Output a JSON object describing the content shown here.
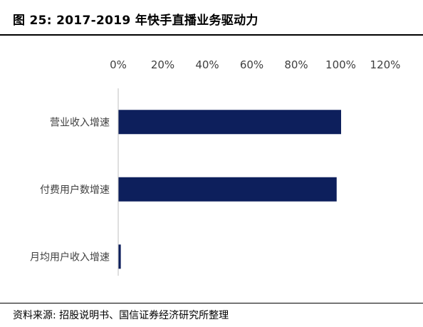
{
  "figure": {
    "title": "图 25:  2017-2019 年快手直播业务驱动力",
    "source": "资料来源:  招股说明书、国信证券经济研究所整理"
  },
  "chart_data": {
    "type": "bar",
    "orientation": "horizontal",
    "categories": [
      "营业收入增速",
      "付费用户数增速",
      "月均用户收入增速"
    ],
    "values": [
      100,
      98,
      1
    ],
    "xlim": [
      0,
      120
    ],
    "x_ticks": [
      "0%",
      "20%",
      "40%",
      "60%",
      "80%",
      "100%",
      "120%"
    ],
    "x_axis_position": "top",
    "grid": false,
    "legend": "none",
    "bar_color": "#0d1f5c",
    "axis_color": "#bfbfbf"
  }
}
